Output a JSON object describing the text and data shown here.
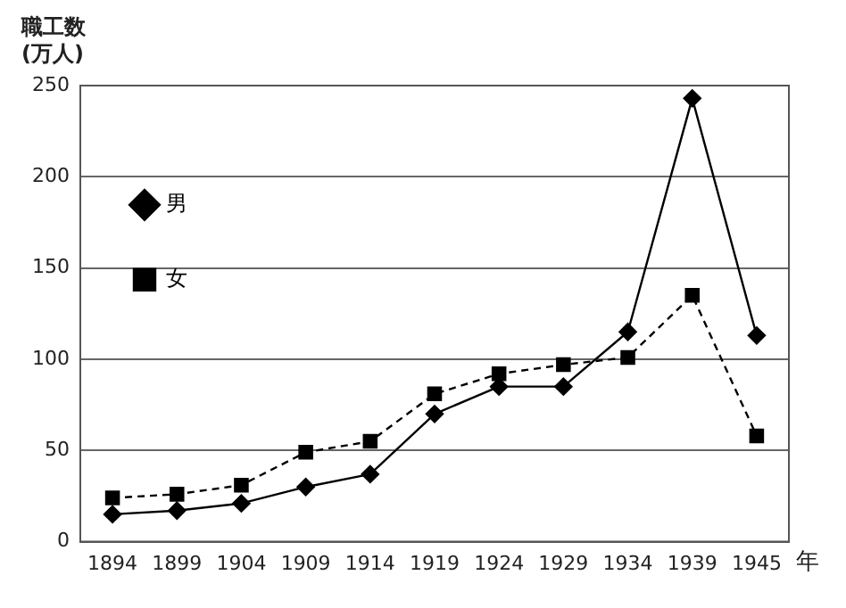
{
  "chart_data": {
    "type": "line",
    "ylabel": "職工数\n(万人)",
    "xlabel": "年",
    "categories": [
      "1894",
      "1899",
      "1904",
      "1909",
      "1914",
      "1919",
      "1924",
      "1929",
      "1934",
      "1939",
      "1945"
    ],
    "series": [
      {
        "name": "男",
        "color": "#000000",
        "marker": "diamond",
        "line_style": "solid",
        "values": [
          15,
          17,
          21,
          30,
          37,
          70,
          85,
          85,
          115,
          243,
          113
        ]
      },
      {
        "name": "女",
        "color": "#000000",
        "marker": "square",
        "line_style": "dashed",
        "values": [
          24,
          26,
          31,
          49,
          55,
          81,
          92,
          97,
          101,
          135,
          58
        ]
      }
    ],
    "ylim": [
      0,
      250
    ],
    "yticks": [
      0,
      50,
      100,
      150,
      200,
      250
    ],
    "grid": "y",
    "legend": "top"
  }
}
